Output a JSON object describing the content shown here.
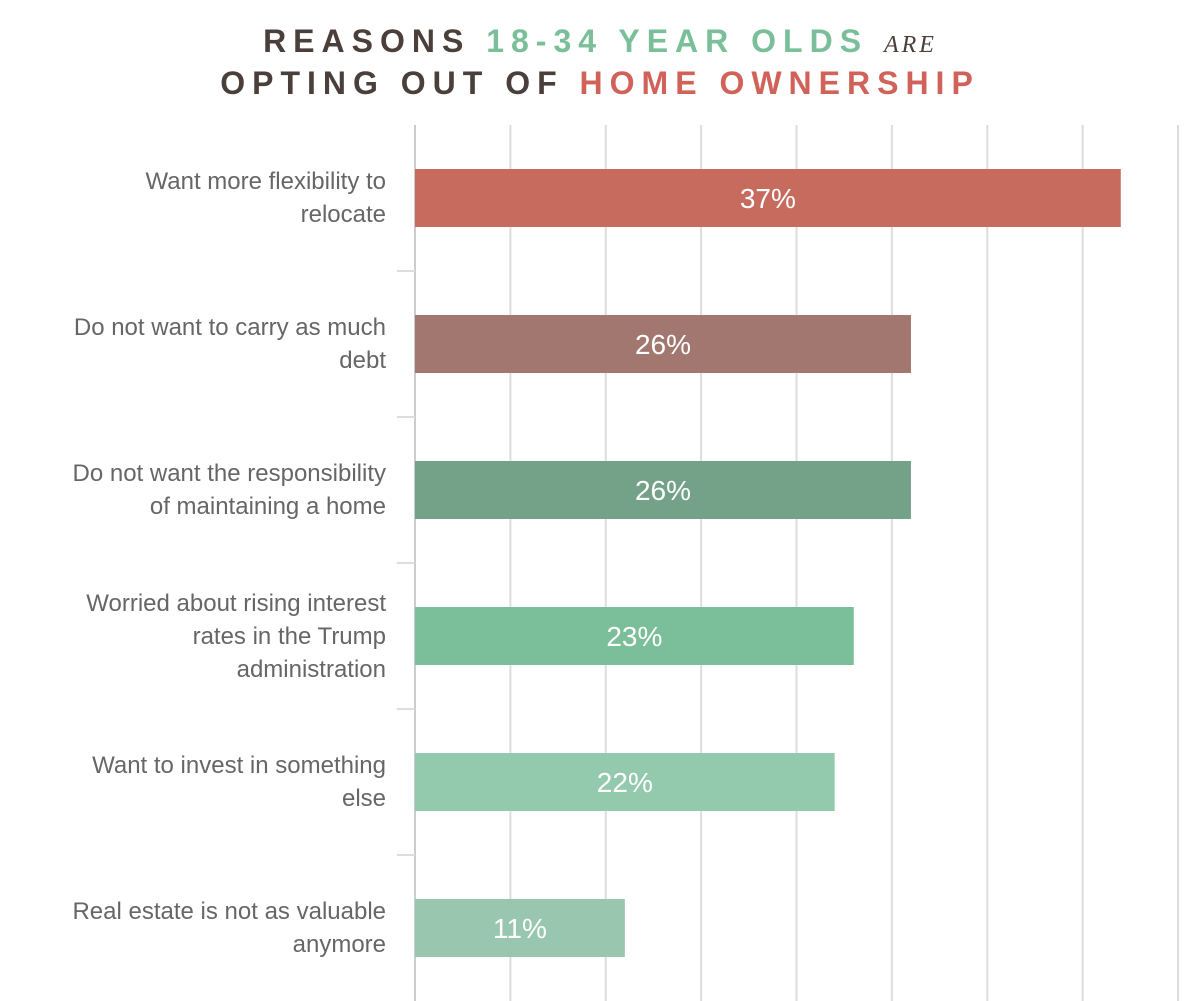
{
  "chart_data": {
    "type": "barh",
    "title_lines": [
      [
        {
          "text": "REASONS",
          "color": "#4a3f3a"
        },
        {
          "text": "18-34 YEAR OLDS",
          "color": "#7abf99"
        },
        {
          "text": "ARE",
          "color": "#4a3f3a",
          "italic_serif": true
        }
      ],
      [
        {
          "text": "OPTING OUT OF",
          "color": "#4a3f3a"
        },
        {
          "text": "HOME OWNERSHIP",
          "color": "#d0625a"
        }
      ]
    ],
    "categories": [
      "Want more flexibility to\nrelocate",
      "Do not want to carry as much\ndebt",
      "Do not want the responsibility\nof maintaining a home",
      "Worried about rising interest\nrates in the Trump\nadministration",
      "Want to invest in something\nelse",
      "Real estate is not as valuable\nanymore"
    ],
    "values": [
      37,
      26,
      26,
      23,
      22,
      11
    ],
    "value_labels": [
      "37%",
      "26%",
      "26%",
      "23%",
      "22%",
      "11%"
    ],
    "colors": [
      "#c66b5e",
      "#a27770",
      "#74a288",
      "#7abf99",
      "#93c9ad",
      "#98c6ae"
    ],
    "xlim": [
      0,
      40
    ],
    "xticks": [
      0,
      5,
      10,
      15,
      20,
      25,
      30,
      35,
      40
    ],
    "xtick_labels_shown": false,
    "grid": true
  }
}
